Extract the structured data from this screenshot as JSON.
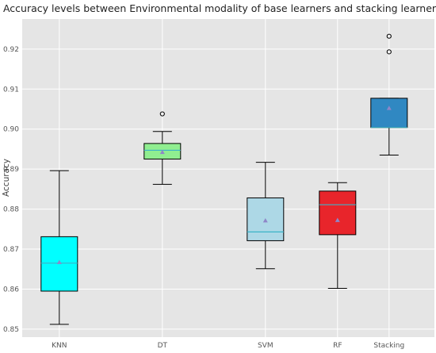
{
  "chart_data": {
    "type": "box",
    "title": "Accuracy levels between Environmental modality of base learners and stacking learner",
    "xlabel": "",
    "ylabel": "Accuracy",
    "ylim": [
      0.848,
      0.9275
    ],
    "yticks": [
      0.85,
      0.86,
      0.87,
      0.88,
      0.89,
      0.9,
      0.91,
      0.92
    ],
    "ytick_labels": [
      "0.85",
      "0.86",
      "0.87",
      "0.88",
      "0.89",
      "0.90",
      "0.91",
      "0.92"
    ],
    "grid": true,
    "background": "#e5e5e5",
    "categories": [
      "KNN",
      "DT",
      "SVM",
      "RF",
      "Stacking"
    ],
    "positions": [
      1,
      3.5,
      6,
      7.75,
      9
    ],
    "xlim": [
      0.1,
      10.1
    ],
    "boxes": [
      {
        "label": "KNN",
        "whisker_low": 0.8512,
        "q1": 0.8595,
        "median": 0.8665,
        "q3": 0.8731,
        "whisker_high": 0.8896,
        "mean": 0.8667,
        "fliers": [],
        "color": "#00ffff"
      },
      {
        "label": "DT",
        "whisker_low": 0.8862,
        "q1": 0.8925,
        "median": 0.8947,
        "q3": 0.8964,
        "whisker_high": 0.8994,
        "mean": 0.8942,
        "fliers": [
          0.9038
        ],
        "color": "#90ee90"
      },
      {
        "label": "SVM",
        "whisker_low": 0.8651,
        "q1": 0.8721,
        "median": 0.8743,
        "q3": 0.8828,
        "whisker_high": 0.8917,
        "mean": 0.8771,
        "fliers": [],
        "color": "#add8e6"
      },
      {
        "label": "RF",
        "whisker_low": 0.8602,
        "q1": 0.8736,
        "median": 0.8811,
        "q3": 0.8845,
        "whisker_high": 0.8866,
        "mean": 0.8772,
        "fliers": [],
        "color": "#e8252b"
      },
      {
        "label": "Stacking",
        "whisker_low": 0.8935,
        "q1": 0.9004,
        "median": 0.9004,
        "q3": 0.9077,
        "whisker_high": 0.9077,
        "mean": 0.9052,
        "fliers": [
          0.9193,
          0.9232
        ],
        "color": "#3088c2"
      }
    ]
  }
}
